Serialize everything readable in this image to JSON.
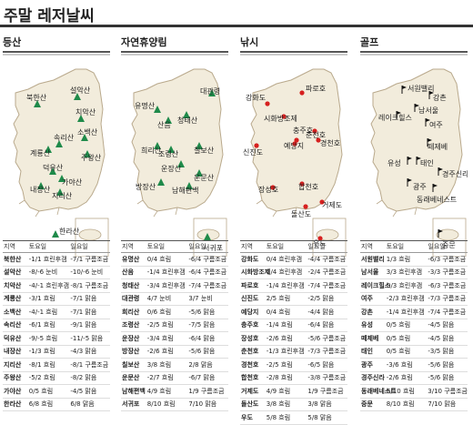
{
  "page_title": "주말 레저날씨",
  "panels": [
    {
      "title": "등산",
      "headers": [
        "지역",
        "토요일",
        "일요일"
      ],
      "map_labels": [
        "북한산",
        "설악산",
        "치악산",
        "소백산",
        "계룡산",
        "속리산",
        "주왕산",
        "덕유산",
        "가야산",
        "내장산",
        "지리산",
        "한라산"
      ],
      "rows": [
        [
          "북한산",
          "-1/1 흐린후갬",
          "-7/1 구름조금"
        ],
        [
          "설악산",
          "-8/-6 눈비",
          "-10/-6 눈비"
        ],
        [
          "치악산",
          "-4/-1 흐린후갬",
          "-8/1 구름조금"
        ],
        [
          "계룡산",
          "-3/1 흐림",
          "-7/1 맑음"
        ],
        [
          "소백산",
          "-4/-1 흐림",
          "-7/1 맑음"
        ],
        [
          "속리산",
          "-6/1 흐림",
          "-9/1 맑음"
        ],
        [
          "덕유산",
          "-9/-5 흐림",
          "-11/-5 맑음"
        ],
        [
          "내장산",
          "-1/3 흐림",
          "-4/3 맑음"
        ],
        [
          "지리산",
          "-8/1 흐림",
          "-8/1 구름조금"
        ],
        [
          "주왕산",
          "-5/2 흐림",
          "-8/2 맑음"
        ],
        [
          "가야산",
          "0/5 흐림",
          "-4/5 맑음"
        ],
        [
          "한라산",
          "6/8 흐림",
          "6/8 맑음"
        ]
      ]
    },
    {
      "title": "자연휴양림",
      "headers": [
        "지역",
        "토요일",
        "일요일"
      ],
      "map_labels": [
        "대관령",
        "유명산",
        "산음",
        "청태산",
        "희리산",
        "조령산",
        "칠보산",
        "운장산",
        "운문산",
        "방장산",
        "남해편백",
        "서귀포"
      ],
      "rows": [
        [
          "유명산",
          "0/4 흐림",
          "-6/4 구름조금"
        ],
        [
          "산음",
          "-1/4 흐린후갬",
          "-6/4 구름조금"
        ],
        [
          "청태산",
          "-3/4 흐린후갬",
          "-7/4 구름조금"
        ],
        [
          "대관령",
          "4/7 눈비",
          "3/7 눈비"
        ],
        [
          "희리산",
          "0/6 흐림",
          "-5/6 맑음"
        ],
        [
          "조령산",
          "-2/5 흐림",
          "-7/5 맑음"
        ],
        [
          "운장산",
          "-3/4 흐림",
          "-6/4 맑음"
        ],
        [
          "방장산",
          "-2/6 흐림",
          "-5/6 맑음"
        ],
        [
          "칠보산",
          "3/8 흐림",
          "2/8 맑음"
        ],
        [
          "운문산",
          "-2/7 흐림",
          "-6/7 맑음"
        ],
        [
          "남해편백",
          "4/9 흐림",
          "1/9 구름조금"
        ],
        [
          "서귀포",
          "8/10 흐림",
          "7/10 맑음"
        ]
      ]
    },
    {
      "title": "낚시",
      "headers": [
        "지역",
        "토요일",
        "일요일"
      ],
      "map_labels": [
        "파로호",
        "강화도",
        "시화방조제",
        "춘천호",
        "예당지",
        "신진도",
        "충주호",
        "경천호",
        "장성호",
        "합천호",
        "거제도",
        "돌산도",
        "우도"
      ],
      "rows": [
        [
          "강화도",
          "0/4 흐린후갬",
          "-4/4 구름조금"
        ],
        [
          "시화방조제",
          "2/4 흐린후갬",
          "-2/4 구름조금"
        ],
        [
          "파로호",
          "-1/4 흐린후갬",
          "-7/4 구름조금"
        ],
        [
          "신진도",
          "2/5 흐림",
          "-2/5 맑음"
        ],
        [
          "예당지",
          "0/4 흐림",
          "-4/4 맑음"
        ],
        [
          "충주호",
          "-1/4 흐림",
          "-6/4 맑음"
        ],
        [
          "장성호",
          "-2/6 흐림",
          "-5/6 구름조금"
        ],
        [
          "춘천호",
          "-1/3 흐린후갬",
          "-7/3 구름조금"
        ],
        [
          "경천호",
          "-2/5 흐림",
          "-6/5 맑음"
        ],
        [
          "합천호",
          "-2/8 흐림",
          "-3/8 구름조금"
        ],
        [
          "거제도",
          "4/9 흐림",
          "1/9 구름조금"
        ],
        [
          "돌산도",
          "3/8 흐림",
          "3/8 맑음"
        ],
        [
          "우도",
          "5/8 흐림",
          "5/8 맑음"
        ]
      ]
    },
    {
      "title": "골프",
      "headers": [
        "지역",
        "토요일",
        "일요일"
      ],
      "map_labels": [
        "서원밸리",
        "강촌",
        "남서울",
        "레이크힐스",
        "여주",
        "떼제베",
        "유성",
        "태인",
        "경주신라",
        "광주",
        "동래베네스트",
        "중문"
      ],
      "rows": [
        [
          "서원밸리",
          "1/3 흐림",
          "-6/3 구름조금"
        ],
        [
          "남서울",
          "3/3 흐린후갬",
          "-3/3 구름조금"
        ],
        [
          "레이크힐스",
          "0/3 흐린후갬",
          "-6/3 구름조금"
        ],
        [
          "여주",
          "-2/3 흐린후갬",
          "-7/3 구름조금"
        ],
        [
          "강촌",
          "-1/4 흐린후갬",
          "-7/4 구름조금"
        ],
        [
          "유성",
          "0/5 흐림",
          "-4/5 맑음"
        ],
        [
          "떼제베",
          "0/5 흐림",
          "-4/5 맑음"
        ],
        [
          "태인",
          "0/5 흐림",
          "-3/5 맑음"
        ],
        [
          "광주",
          "-3/6 흐림",
          "-5/6 맑음"
        ],
        [
          "경주신라",
          "-2/6 흐림",
          "-5/6 맑음"
        ],
        [
          "동래베네스트",
          "6/10 흐림",
          "3/10 구름조금"
        ],
        [
          "중문",
          "8/10 흐림",
          "7/10 맑음"
        ]
      ]
    }
  ],
  "colors": {
    "map_land": "#f2ecdc",
    "map_border": "#b9a98c",
    "tree": "#1f8a4a",
    "fish_dot": "#d6201f",
    "golf_flag": "#111111"
  }
}
